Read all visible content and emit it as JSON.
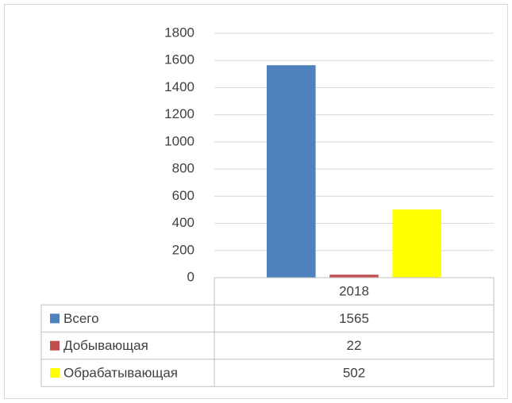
{
  "chart_data": {
    "type": "bar",
    "categories": [
      "2018"
    ],
    "series": [
      {
        "name": "Всего",
        "color": "#4f81bd",
        "values": [
          1565
        ]
      },
      {
        "name": "Добывающая",
        "color": "#c0504d",
        "values": [
          22
        ]
      },
      {
        "name": "Обрабатывающая",
        "color": "#ffff00",
        "values": [
          502
        ]
      }
    ],
    "ylim": [
      0,
      1800
    ],
    "yticks": [
      0,
      200,
      400,
      600,
      800,
      1000,
      1200,
      1400,
      1600,
      1800
    ],
    "grid": true,
    "data_table": true
  }
}
